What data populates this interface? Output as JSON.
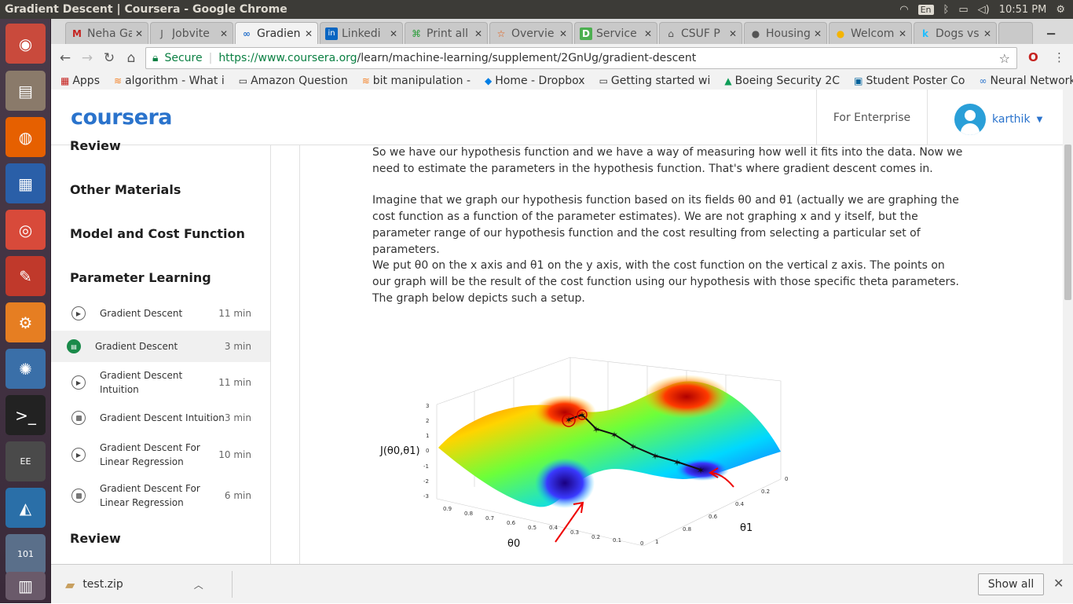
{
  "window_title": "Gradient Descent | Coursera - Google Chrome",
  "tray": {
    "keyboard": "En",
    "time": "10:51 PM"
  },
  "tabs": [
    {
      "label": "Neha Ga",
      "fav": "M",
      "fav_color": "#c5221f"
    },
    {
      "label": "Jobvite",
      "fav": "J",
      "fav_color": "#333333"
    },
    {
      "label": "Gradien",
      "fav": "∞",
      "fav_color": "#2a73cc"
    },
    {
      "label": "Linkedi",
      "fav": "in",
      "fav_color": "#0a66c2"
    },
    {
      "label": "Print all",
      "fav": "⌘",
      "fav_color": "#2a9d3a"
    },
    {
      "label": "Overvie",
      "fav": "☆",
      "fav_color": "#e65100"
    },
    {
      "label": "Service",
      "fav": "D",
      "fav_color": "#4caf50"
    },
    {
      "label": "CSUF P",
      "fav": "⌂",
      "fav_color": "#333333"
    },
    {
      "label": "Housing",
      "fav": "●",
      "fav_color": "#111111"
    },
    {
      "label": "Welcom",
      "fav": "●",
      "fav_color": "#f4b400"
    },
    {
      "label": "Dogs vs",
      "fav": "k",
      "fav_color": "#20beff"
    }
  ],
  "omnibox": {
    "secure": "Secure",
    "host": "https://www.coursera.org",
    "path": "/learn/machine-learning/supplement/2GnUg/gradient-descent"
  },
  "bookmarks": [
    {
      "label": "Apps",
      "icon": "▦"
    },
    {
      "label": "algorithm - What i",
      "icon": "≋"
    },
    {
      "label": "Amazon Question",
      "icon": "▭"
    },
    {
      "label": "bit manipulation -",
      "icon": "≋"
    },
    {
      "label": "Home - Dropbox",
      "icon": "◆"
    },
    {
      "label": "Getting started wi",
      "icon": "▭"
    },
    {
      "label": "Boeing Security 2C",
      "icon": "▲"
    },
    {
      "label": "Student Poster Co",
      "icon": "▣"
    },
    {
      "label": "Neural Networks f",
      "icon": "∞"
    }
  ],
  "header": {
    "logo": "coursera",
    "enterprise": "For Enterprise",
    "user": "karthik"
  },
  "sidebar": {
    "sections": [
      "Review",
      "Other Materials",
      "Model and Cost Function",
      "Parameter Learning",
      "Review"
    ],
    "items": [
      {
        "label": "Gradient Descent",
        "duration": "11 min",
        "type": "video"
      },
      {
        "label": "Gradient Descent",
        "duration": "3 min",
        "type": "reading"
      },
      {
        "label": "Gradient Descent Intuition",
        "duration": "11 min",
        "type": "video"
      },
      {
        "label": "Gradient Descent Intuition",
        "duration": "3 min",
        "type": "reading-unread"
      },
      {
        "label": "Gradient Descent For Linear Regression",
        "duration": "10 min",
        "type": "video"
      },
      {
        "label": "Gradient Descent For Linear Regression",
        "duration": "6 min",
        "type": "reading-unread"
      }
    ]
  },
  "content": {
    "p1": "So we have our hypothesis function and we have a way of measuring how well it fits into the data. Now we need to estimate the parameters in the hypothesis function. That's where gradient descent comes in.",
    "p2": "Imagine that we graph our hypothesis function based on its fields θ0 and θ1 (actually we are graphing the cost function as a function of the parameter estimates). We are not graphing x and y itself, but the parameter range of our hypothesis function and the cost resulting from selecting a particular set of parameters.",
    "p3": "We put θ0 on the x axis and θ1 on the y axis, with the cost function on the vertical z axis. The points on our graph will be the result of the cost function using our hypothesis with those specific theta parameters. The graph below depicts such a setup.",
    "figure": {
      "zlabel": "J(θ0,θ1)",
      "xlabel": "θ0",
      "ylabel": "θ1",
      "zticks": [
        "3",
        "2",
        "1",
        "0",
        "-1",
        "-2",
        "-3"
      ],
      "xticks": [
        "0.9",
        "0.8",
        "0.7",
        "0.6",
        "0.5",
        "0.4",
        "0.3",
        "0.2",
        "0.1",
        "0"
      ],
      "yticks": [
        "0",
        "0.2",
        "0.4",
        "0.6",
        "0.8",
        "1"
      ]
    }
  },
  "download": {
    "file": "test.zip",
    "show_all": "Show all"
  }
}
